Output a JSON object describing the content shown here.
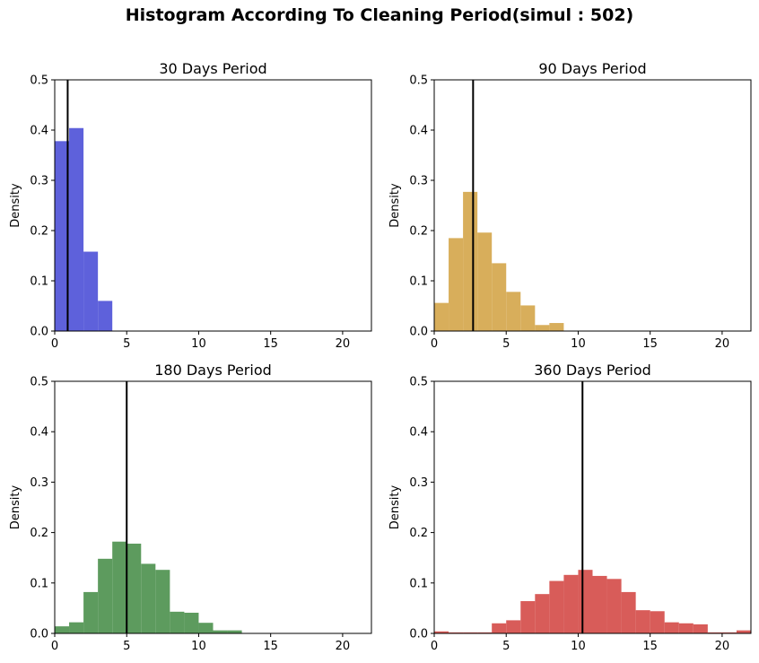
{
  "figure": {
    "title": "Histogram According To Cleaning Period(simul : 502)"
  },
  "chart_data": [
    {
      "type": "bar",
      "title": "30 Days Period",
      "xlabel": "",
      "ylabel": "Density",
      "xlim": [
        0,
        22
      ],
      "ylim": [
        0,
        0.5
      ],
      "xticks": [
        0,
        5,
        10,
        15,
        20
      ],
      "yticks": [
        0.0,
        0.1,
        0.2,
        0.3,
        0.4,
        0.5
      ],
      "bin_width": 1,
      "bin_starts": [
        0,
        1,
        2,
        3
      ],
      "values": [
        0.378,
        0.404,
        0.158,
        0.06
      ],
      "mean_line": 0.9,
      "color": "#5558d9"
    },
    {
      "type": "bar",
      "title": "90 Days Period",
      "xlabel": "",
      "ylabel": "Density",
      "xlim": [
        0,
        22
      ],
      "ylim": [
        0,
        0.5
      ],
      "xticks": [
        0,
        5,
        10,
        15,
        20
      ],
      "yticks": [
        0.0,
        0.1,
        0.2,
        0.3,
        0.4,
        0.5
      ],
      "bin_width": 1,
      "bin_starts": [
        0,
        1,
        2,
        3,
        4,
        5,
        6,
        7,
        8
      ],
      "values": [
        0.056,
        0.185,
        0.277,
        0.196,
        0.135,
        0.078,
        0.051,
        0.012,
        0.016
      ],
      "mean_line": 2.7,
      "color": "#d6aa52"
    },
    {
      "type": "bar",
      "title": "180 Days Period",
      "xlabel": "",
      "ylabel": "Density",
      "xlim": [
        0,
        22
      ],
      "ylim": [
        0,
        0.5
      ],
      "xticks": [
        0,
        5,
        10,
        15,
        20
      ],
      "yticks": [
        0.0,
        0.1,
        0.2,
        0.3,
        0.4,
        0.5
      ],
      "bin_width": 1,
      "bin_starts": [
        0,
        1,
        2,
        3,
        4,
        5,
        6,
        7,
        8,
        9,
        10,
        11,
        12
      ],
      "values": [
        0.014,
        0.022,
        0.082,
        0.148,
        0.182,
        0.178,
        0.138,
        0.126,
        0.043,
        0.041,
        0.021,
        0.006,
        0.006
      ],
      "mean_line": 5.0,
      "color": "#549655"
    },
    {
      "type": "bar",
      "title": "360 Days Period",
      "xlabel": "",
      "ylabel": "Density",
      "xlim": [
        0,
        22
      ],
      "ylim": [
        0,
        0.5
      ],
      "xticks": [
        0,
        5,
        10,
        15,
        20
      ],
      "yticks": [
        0.0,
        0.1,
        0.2,
        0.3,
        0.4,
        0.5
      ],
      "bin_width": 1,
      "bin_starts": [
        0,
        1,
        2,
        3,
        4,
        5,
        6,
        7,
        8,
        9,
        10,
        11,
        12,
        13,
        14,
        15,
        16,
        17,
        18,
        19,
        20,
        21
      ],
      "values": [
        0.004,
        0.002,
        0.002,
        0.002,
        0.02,
        0.026,
        0.064,
        0.078,
        0.104,
        0.116,
        0.126,
        0.114,
        0.108,
        0.082,
        0.046,
        0.044,
        0.022,
        0.02,
        0.018,
        0.002,
        0.002,
        0.006
      ],
      "mean_line": 10.3,
      "color": "#d65350"
    }
  ]
}
